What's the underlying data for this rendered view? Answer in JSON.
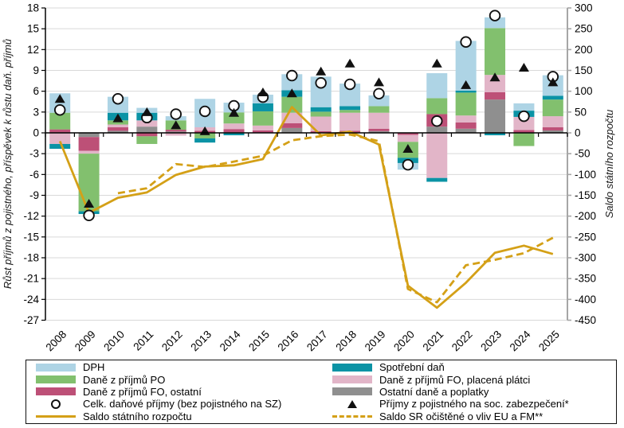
{
  "chart_data": {
    "type": "bar",
    "subtype": "stacked-bars-with-lines-and-markers",
    "categories": [
      "2008",
      "2009",
      "2010",
      "2011",
      "2012",
      "2013",
      "2014",
      "2015",
      "2016",
      "2017",
      "2018",
      "2019",
      "2020",
      "2021",
      "2022",
      "2023",
      "2024",
      "2025"
    ],
    "left_axis": {
      "label": "Růst příjmů z pojistného, příspěvek k růstu daň. příjmů",
      "min": -27,
      "max": 18,
      "step": 3
    },
    "right_axis": {
      "label": "Saldo státního rozpočtu",
      "min": -450,
      "max": 300,
      "step": 50
    },
    "grid": "horizontal",
    "bar_stack_order": "bottom-to-top",
    "bar_series": [
      {
        "name": "Ostatní daně a poplatky",
        "color": "#8f8f8f",
        "values": [
          0,
          -0.6,
          0.3,
          0.9,
          0.2,
          0,
          0.1,
          0,
          0.7,
          0,
          0,
          0.25,
          0,
          0.9,
          0.6,
          4.8,
          0,
          0.35
        ]
      },
      {
        "name": "Daně z příjmů FO, ostatní",
        "color": "#bd5077",
        "values": [
          0.5,
          -2.0,
          0.5,
          -0.5,
          0.25,
          0.3,
          0.45,
          0.35,
          0.7,
          0.25,
          0.3,
          0.35,
          -0.3,
          1.8,
          0.9,
          1.05,
          0.4,
          0.45
        ]
      },
      {
        "name": "Daně z příjmů FO, placená plátci",
        "color": "#e2b5c8",
        "values": [
          -1.6,
          -0.4,
          0.4,
          0.9,
          -0.4,
          0.5,
          0.8,
          0.7,
          1.5,
          2.1,
          2.6,
          2.3,
          -1.0,
          -6.5,
          1.0,
          2.5,
          1.9,
          1.6
        ]
      },
      {
        "name": "Daně z příjmů PO",
        "color": "#82c06e",
        "values": [
          2.4,
          -8.3,
          0.6,
          -1.1,
          1.35,
          -0.8,
          1.6,
          2.05,
          2.3,
          0.7,
          0.4,
          0.95,
          -2.3,
          2.3,
          3.3,
          6.75,
          -1.9,
          2.4
        ]
      },
      {
        "name": "Spotřební daň",
        "color": "#0b93a5",
        "values": [
          -0.7,
          -0.4,
          1.1,
          1.1,
          0,
          -0.6,
          -0.35,
          1.15,
          0.95,
          0.65,
          0.55,
          0,
          -0.75,
          -0.55,
          0.3,
          -0.35,
          0.9,
          0.55
        ]
      },
      {
        "name": "DPH",
        "color": "#aed4e5",
        "values": [
          2.8,
          0,
          2.3,
          0.7,
          0.6,
          4.1,
          1.4,
          1.25,
          2.3,
          4.4,
          3.25,
          1.55,
          -0.95,
          3.6,
          7.15,
          1.55,
          1.05,
          2.95
        ]
      }
    ],
    "marker_series": [
      {
        "name": "Celk. daňové příjmy (bez pojistného na SZ)",
        "marker": "circle",
        "axis": "left",
        "values": [
          3.3,
          -11.9,
          4.9,
          2.2,
          2.7,
          3.1,
          3.9,
          5.15,
          8.25,
          7.2,
          7.0,
          5.65,
          -4.6,
          1.7,
          13.1,
          16.9,
          2.4,
          8.1
        ]
      },
      {
        "name": "Příjmy z pojistného na soc. zabezpečení*",
        "marker": "triangle",
        "axis": "left",
        "values": [
          4.9,
          -10.2,
          2.1,
          3.0,
          1.1,
          0.25,
          2.9,
          5.85,
          5.7,
          8.85,
          10.0,
          7.3,
          -2.3,
          10.0,
          6.9,
          8.0,
          9.4,
          7.3
        ]
      }
    ],
    "line_series": [
      {
        "name": "Saldo státního rozpočtu",
        "style": "solid",
        "color": "#d4a017",
        "axis": "right",
        "values": [
          -20,
          -192,
          -156,
          -143,
          -101,
          -81,
          -78,
          -63,
          62,
          -6,
          3,
          -28,
          -367,
          -420,
          -360,
          -288,
          -271,
          -291
        ]
      },
      {
        "name": "Saldo SR očištěné o vliv EU a FM**",
        "style": "dashed",
        "color": "#d4a017",
        "axis": "right",
        "values": [
          null,
          null,
          -145,
          -133,
          -75,
          -82,
          -69,
          -55,
          -18,
          -8,
          -4,
          -20,
          -375,
          -407,
          -318,
          -305,
          -289,
          -252
        ]
      }
    ],
    "legend": {
      "position": "bottom",
      "columns": [
        [
          {
            "label": "DPH",
            "swatch": "bar",
            "color": "#aed4e5"
          },
          {
            "label": "Daně z příjmů PO",
            "swatch": "bar",
            "color": "#82c06e"
          },
          {
            "label": "Daně z příjmů FO, ostatní",
            "swatch": "bar",
            "color": "#bd5077"
          },
          {
            "label": "Celk. daňové příjmy (bez pojistného na SZ)",
            "swatch": "circle"
          },
          {
            "label": "Saldo státního rozpočtu",
            "swatch": "line-solid",
            "color": "#d4a017"
          }
        ],
        [
          {
            "label": "Spotřební daň",
            "swatch": "bar",
            "color": "#0b93a5"
          },
          {
            "label": "Daně z příjmů FO, placená plátci",
            "swatch": "bar",
            "color": "#e2b5c8"
          },
          {
            "label": "Ostatní daně a poplatky",
            "swatch": "bar",
            "color": "#8f8f8f"
          },
          {
            "label": "Příjmy z pojistného na soc. zabezpečení*",
            "swatch": "triangle"
          },
          {
            "label": "Saldo SR očištěné o vliv EU a FM**",
            "swatch": "line-dashed",
            "color": "#d4a017"
          }
        ]
      ]
    },
    "colors": {
      "grid": "#d9d9d9",
      "zero_line": "#000000",
      "left_axis_line": "#000000",
      "right_axis_line": "#a6a6a6",
      "accent_line": "#d4a017"
    }
  }
}
